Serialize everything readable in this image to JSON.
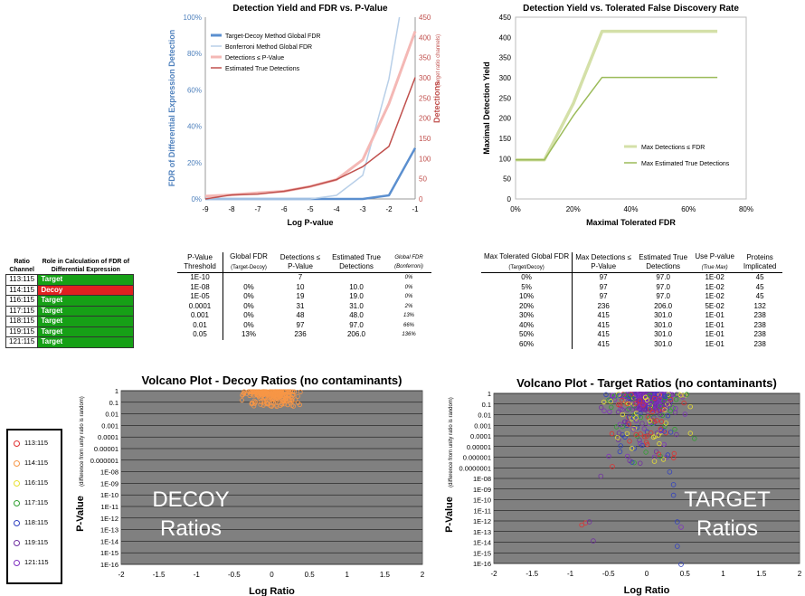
{
  "chart_data": [
    {
      "type": "line",
      "title": "Detection Yield and FDR vs. P-Value",
      "xlabel": "Log P-value",
      "ylabel": "FDR of Differential Expression Detection",
      "y2label": "Detections",
      "y2label_suffix": "(target ratio channels)",
      "x_ticks": [
        "-9",
        "-8",
        "-7",
        "-6",
        "-5",
        "-4",
        "-3",
        "-2",
        "-1"
      ],
      "y_ticks": [
        "0%",
        "20%",
        "40%",
        "60%",
        "80%",
        "100%"
      ],
      "y2_ticks": [
        "0",
        "50",
        "100",
        "150",
        "200",
        "250",
        "300",
        "350",
        "400",
        "450"
      ],
      "xlim": [
        -9,
        -1
      ],
      "ylim": [
        0,
        1
      ],
      "y2lim": [
        0,
        450
      ],
      "legend_position": "top-left",
      "series": [
        {
          "name": "Target-Decoy Method Global FDR",
          "axis": "left",
          "color": "#5b8fcf",
          "x": [
            -9,
            -8,
            -7,
            -6,
            -5,
            -4,
            -3,
            -2,
            -1
          ],
          "y": [
            0,
            0,
            0,
            0,
            0,
            0,
            0,
            0.02,
            0.28
          ]
        },
        {
          "name": "Bonferroni Method Global FDR",
          "axis": "left",
          "color": "#b8cfe8",
          "x": [
            -9,
            -8,
            -7,
            -6,
            -5,
            -4,
            -3,
            -2,
            -1.6
          ],
          "y": [
            0,
            0,
            0,
            0,
            0,
            0.02,
            0.13,
            0.66,
            1.0
          ]
        },
        {
          "name": "Detections ≤ P-Value",
          "axis": "right",
          "color": "#f4b8b5",
          "x": [
            -9,
            -8,
            -7,
            -6,
            -5,
            -4,
            -3,
            -2,
            -1
          ],
          "y": [
            7,
            10,
            15,
            19,
            31,
            48,
            97,
            236,
            415
          ]
        },
        {
          "name": "Estimated True Detections",
          "axis": "right",
          "color": "#c0504d",
          "x": [
            -9,
            -8,
            -7,
            -6,
            -5,
            -4,
            -3,
            -2,
            -1
          ],
          "y": [
            0,
            10,
            12,
            19,
            31,
            48,
            80,
            130,
            301
          ]
        }
      ]
    },
    {
      "type": "line",
      "title": "Detection Yield vs. Tolerated False Discovery Rate",
      "xlabel": "Maximal Tolerated FDR",
      "ylabel": "Maximal Detection Yield",
      "x_ticks": [
        "0%",
        "20%",
        "40%",
        "60%",
        "80%"
      ],
      "y_ticks": [
        "0",
        "50",
        "100",
        "150",
        "200",
        "250",
        "300",
        "350",
        "400",
        "450"
      ],
      "xlim": [
        0,
        0.8
      ],
      "ylim": [
        0,
        450
      ],
      "legend_position": "right",
      "series": [
        {
          "name": "Max Detections ≤ FDR",
          "color": "#d4e0a8",
          "x": [
            0,
            0.05,
            0.1,
            0.2,
            0.3,
            0.4,
            0.5,
            0.6,
            0.7
          ],
          "y": [
            97,
            97,
            97,
            236,
            415,
            415,
            415,
            415,
            415
          ]
        },
        {
          "name": "Max Estimated True Detections",
          "color": "#9bbb59",
          "x": [
            0,
            0.05,
            0.1,
            0.2,
            0.3,
            0.4,
            0.5,
            0.6,
            0.7
          ],
          "y": [
            97,
            97,
            97,
            206,
            301,
            301,
            301,
            301,
            301
          ]
        }
      ]
    },
    {
      "type": "scatter",
      "title": "Volcano Plot - Decoy Ratios (no contaminants)",
      "xlabel": "Log Ratio",
      "ylabel": "P-Value",
      "ylabel_suffix": "(difference from unity ratio is random)",
      "x_ticks": [
        "-2",
        "-1.5",
        "-1",
        "-0.5",
        "0",
        "0.5",
        "1",
        "1.5",
        "2"
      ],
      "y_ticks": [
        "1",
        "0.1",
        "0.01",
        "0.001",
        "0.0001",
        "0.00001",
        "0.000001",
        "1E-08",
        "1E-09",
        "1E-10",
        "1E-11",
        "1E-12",
        "1E-13",
        "1E-14",
        "1E-15",
        "1E-16"
      ],
      "xlim": [
        -2,
        2
      ],
      "annotation": [
        "DECOY",
        "Ratios"
      ],
      "series": [
        {
          "name": "114:115",
          "color": "#f79646",
          "cluster": {
            "x_center": 0,
            "x_spread": 0.45,
            "y_log_min": -0.8,
            "y_log_max": 0
          }
        }
      ]
    },
    {
      "type": "scatter",
      "title": "Volcano Plot - Target Ratios (no contaminants)",
      "xlabel": "Log Ratio",
      "ylabel": "P-Value",
      "ylabel_suffix": "(difference from unity ratio is random)",
      "x_ticks": [
        "-2",
        "-1.5",
        "-1",
        "-0.5",
        "0",
        "0.5",
        "1",
        "1.5",
        "2"
      ],
      "y_ticks": [
        "1",
        "0.1",
        "0.01",
        "0.001",
        "0.0001",
        "0.00001",
        "0.000001",
        "0.0000001",
        "1E-08",
        "1E-09",
        "1E-10",
        "1E-11",
        "1E-12",
        "1E-13",
        "1E-14",
        "1E-15",
        "1E-16"
      ],
      "xlim": [
        -2,
        2
      ],
      "annotation": [
        "TARGET",
        "Ratios"
      ],
      "series": [
        {
          "name": "113:115",
          "color": "#e03030"
        },
        {
          "name": "116:115",
          "color": "#e8e030"
        },
        {
          "name": "117:115",
          "color": "#30a030"
        },
        {
          "name": "118:115",
          "color": "#3040c0"
        },
        {
          "name": "119:115",
          "color": "#7030a0"
        },
        {
          "name": "121:115",
          "color": "#8030c0"
        }
      ]
    }
  ],
  "legend_box": [
    {
      "label": "113:115",
      "color": "#e03030"
    },
    {
      "label": "114:115",
      "color": "#f79646"
    },
    {
      "label": "116:115",
      "color": "#e8e030"
    },
    {
      "label": "117:115",
      "color": "#30a030"
    },
    {
      "label": "118:115",
      "color": "#3040c0"
    },
    {
      "label": "119:115",
      "color": "#7030a0"
    },
    {
      "label": "121:115",
      "color": "#8030c0"
    }
  ],
  "role_table": {
    "header": [
      "Ratio Channel",
      "Role in Calculation of FDR of Differential Expression"
    ],
    "rows": [
      {
        "channel": "113:115",
        "role": "Target",
        "color": "#16a016"
      },
      {
        "channel": "114:115",
        "role": "Decoy",
        "color": "#e02020"
      },
      {
        "channel": "116:115",
        "role": "Target",
        "color": "#16a016"
      },
      {
        "channel": "117:115",
        "role": "Target",
        "color": "#16a016"
      },
      {
        "channel": "118:115",
        "role": "Target",
        "color": "#16a016"
      },
      {
        "channel": "119:115",
        "role": "Target",
        "color": "#16a016"
      },
      {
        "channel": "121:115",
        "role": "Target",
        "color": "#16a016"
      }
    ]
  },
  "pvalue_table": {
    "header": [
      "P-Value Threshold",
      "Global FDR",
      "(Target-Decoy)",
      "Detections ≤ P-Value",
      "Estimated True Detections",
      "Global FDR",
      "(Bonferroni)"
    ],
    "rows": [
      [
        "1E-10",
        "",
        "7",
        "",
        "0%"
      ],
      [
        "1E-08",
        "0%",
        "10",
        "10.0",
        "0%"
      ],
      [
        "1E-05",
        "0%",
        "19",
        "19.0",
        "0%"
      ],
      [
        "0.0001",
        "0%",
        "31",
        "31.0",
        "2%"
      ],
      [
        "0.001",
        "0%",
        "48",
        "48.0",
        "13%"
      ],
      [
        "0.01",
        "0%",
        "97",
        "97.0",
        "66%"
      ],
      [
        "0.05",
        "13%",
        "236",
        "206.0",
        "136%"
      ]
    ]
  },
  "fdr_table": {
    "header": [
      "Max Tolerated Global FDR",
      "(Target/Decoy)",
      "Max Detections ≤ P-Value",
      "Estimated True Detections",
      "Use P-value",
      "(True Max)",
      "Proteins Implicated"
    ],
    "rows": [
      [
        "0%",
        "97",
        "97.0",
        "1E-02",
        "45"
      ],
      [
        "5%",
        "97",
        "97.0",
        "1E-02",
        "45"
      ],
      [
        "10%",
        "97",
        "97.0",
        "1E-02",
        "45"
      ],
      [
        "20%",
        "236",
        "206.0",
        "5E-02",
        "132"
      ],
      [
        "30%",
        "415",
        "301.0",
        "1E-01",
        "238"
      ],
      [
        "40%",
        "415",
        "301.0",
        "1E-01",
        "238"
      ],
      [
        "50%",
        "415",
        "301.0",
        "1E-01",
        "238"
      ],
      [
        "60%",
        "415",
        "301.0",
        "1E-01",
        "238"
      ]
    ]
  }
}
